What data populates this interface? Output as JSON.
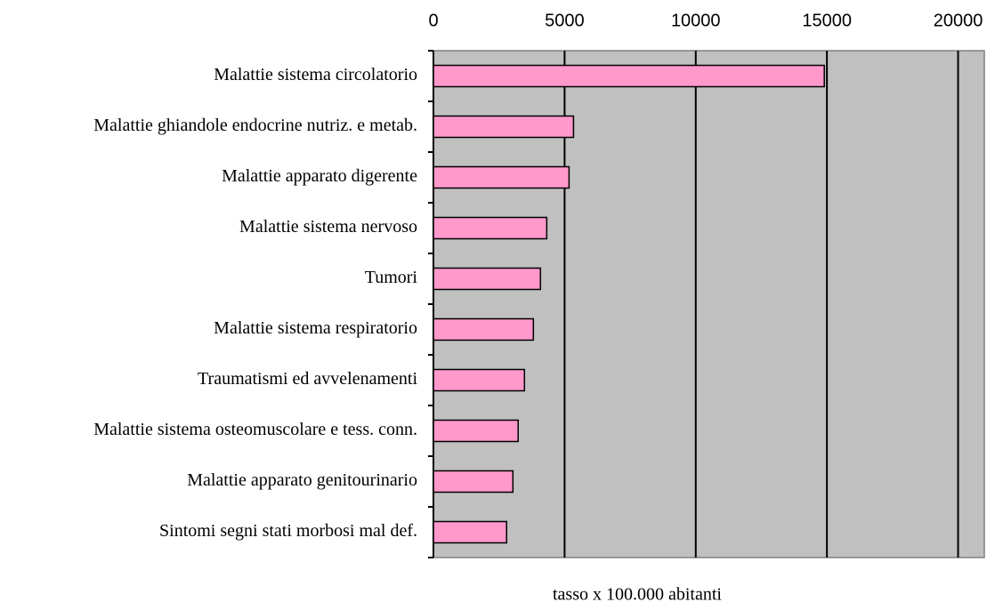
{
  "chart_data": {
    "type": "bar",
    "orientation": "horizontal",
    "x_label": "tasso x 100.000 abitanti",
    "categories": [
      "Malattie sistema circolatorio",
      "Malattie ghiandole endocrine nutriz. e metab.",
      "Malattie apparato digerente",
      "Malattie sistema nervoso",
      "Tumori",
      "Malattie sistema respiratorio",
      "Traumatismi ed avvelenamenti",
      "Malattie sistema osteomuscolare e tess. conn.",
      "Malattie apparato genitourinario",
      "Sintomi segni stati morbosi mal def."
    ],
    "values": [
      14900,
      5340,
      5170,
      4320,
      4080,
      3810,
      3470,
      3230,
      3030,
      2790
    ],
    "color": "#ff99cc",
    "plot_background": "#c0c0c0",
    "xlim": [
      0,
      21000
    ],
    "xticks": [
      0,
      5000,
      10000,
      15000,
      20000
    ],
    "grid": true
  }
}
